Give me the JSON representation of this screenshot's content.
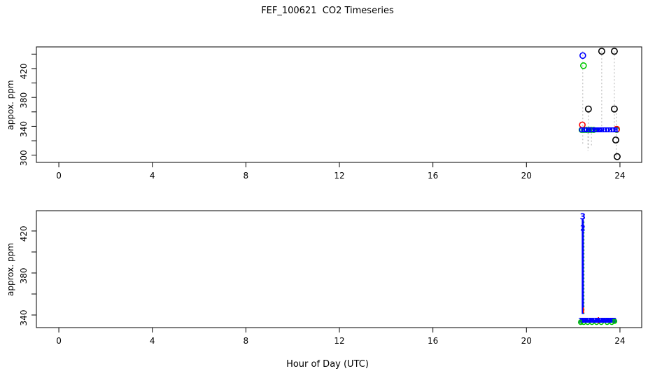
{
  "title": "FEF_100621  CO2 Timeseries",
  "xlabel": "Hour of Day (UTC)",
  "panels": {
    "top": {
      "ylabel": "appox. ppm"
    },
    "bottom": {
      "ylabel": "approx. ppm"
    }
  },
  "colors": {
    "black": "#000000",
    "blue": "#0000ff",
    "green": "#00c800",
    "red": "#ff0000",
    "gray_dotted": "#b3b3b3",
    "axis": "#000000",
    "background": "#ffffff"
  },
  "chart_data": [
    {
      "type": "scatter",
      "panel": "top",
      "ylabel": "appox. ppm",
      "xlim": [
        -0.96,
        24.93
      ],
      "ylim": [
        290,
        450
      ],
      "xticks": [
        0,
        4,
        8,
        12,
        16,
        20,
        24
      ],
      "yticks": [
        300,
        340,
        380,
        420
      ],
      "yticks_minor": [
        320,
        360,
        400,
        440
      ],
      "grid": false,
      "legend": null,
      "connectors": {
        "style": "dotted",
        "color": "#b3b3b3",
        "width": 1,
        "segs": [
          [
            22.41,
            444,
            22.41,
            316
          ],
          [
            22.63,
            336,
            22.63,
            306
          ],
          [
            22.65,
            360,
            22.65,
            308
          ],
          [
            22.78,
            335,
            22.78,
            312
          ],
          [
            23.22,
            444,
            23.22,
            336
          ],
          [
            23.76,
            444,
            23.76,
            336
          ],
          [
            23.84,
            363,
            23.84,
            294
          ]
        ]
      },
      "series": [
        {
          "name": "band-underlay-green",
          "kind": "points",
          "marker": "circle-open",
          "color": "#00c800",
          "size": 3.5,
          "points": [
            [
              22.36,
              335
            ],
            [
              22.46,
              335
            ],
            [
              22.56,
              335
            ],
            [
              22.67,
              335
            ],
            [
              22.77,
              335
            ],
            [
              22.88,
              335
            ],
            [
              23.86,
              335
            ]
          ]
        },
        {
          "name": "red-flag-points",
          "kind": "points",
          "marker": "circle-open",
          "color": "#ff0000",
          "size": 4,
          "points": [
            [
              22.39,
              342
            ],
            [
              23.86,
              336
            ]
          ]
        },
        {
          "name": "calibration-band-digits",
          "kind": "points",
          "marker": "digit",
          "color": "#0000ff",
          "size": 9.5,
          "points": [
            [
              22.34,
              335
            ],
            [
              22.385,
              335
            ],
            [
              22.43,
              335
            ],
            [
              22.475,
              335
            ],
            [
              22.52,
              335
            ],
            [
              22.565,
              335
            ],
            [
              22.61,
              335
            ],
            [
              22.655,
              335
            ],
            [
              22.7,
              335
            ],
            [
              22.745,
              335
            ],
            [
              22.79,
              335
            ],
            [
              22.835,
              335
            ],
            [
              22.88,
              335
            ],
            [
              22.925,
              335
            ],
            [
              22.97,
              335
            ],
            [
              23.015,
              335
            ],
            [
              23.06,
              335
            ],
            [
              23.105,
              335
            ],
            [
              23.15,
              335
            ],
            [
              23.195,
              335
            ],
            [
              23.24,
              335
            ],
            [
              23.285,
              335
            ],
            [
              23.33,
              335
            ],
            [
              23.375,
              335
            ],
            [
              23.42,
              335
            ],
            [
              23.465,
              335
            ],
            [
              23.51,
              335
            ],
            [
              23.555,
              335
            ],
            [
              23.6,
              335
            ],
            [
              23.645,
              335
            ],
            [
              23.69,
              335
            ],
            [
              23.735,
              335
            ],
            [
              23.78,
              335
            ],
            [
              23.825,
              335
            ],
            [
              23.87,
              335
            ]
          ],
          "labels": [
            "0",
            "1",
            "3",
            "1",
            "0",
            "2",
            "1",
            "3",
            "1",
            "1",
            "0",
            "3",
            "1",
            "2",
            "0",
            "1",
            "1",
            "3",
            "0",
            "1",
            "2",
            "1",
            "0",
            "3",
            "1",
            "0",
            "1",
            "2",
            "3",
            "1",
            "0",
            "1",
            "1",
            "3",
            "1"
          ]
        },
        {
          "name": "blue-high-point",
          "kind": "points",
          "marker": "circle-open",
          "color": "#0000ff",
          "size": 4,
          "points": [
            [
              22.41,
              438
            ]
          ]
        },
        {
          "name": "green-high-point",
          "kind": "points",
          "marker": "circle-open",
          "color": "#00c800",
          "size": 4,
          "points": [
            [
              22.44,
              424
            ]
          ]
        },
        {
          "name": "black-flag-points",
          "kind": "points",
          "marker": "circle-open",
          "color": "#000000",
          "size": 4.2,
          "points": [
            [
              23.22,
              444
            ],
            [
              23.76,
              444
            ],
            [
              22.65,
              364
            ],
            [
              23.76,
              364
            ],
            [
              23.82,
              321
            ],
            [
              23.88,
              298
            ]
          ]
        }
      ]
    },
    {
      "type": "scatter",
      "panel": "bottom",
      "ylabel": "approx. ppm",
      "xlim": [
        -0.96,
        24.93
      ],
      "ylim": [
        328,
        439.3
      ],
      "xticks": [
        0,
        4,
        8,
        12,
        16,
        20,
        24
      ],
      "yticks": [
        340,
        380,
        420
      ],
      "yticks_minor": [
        360,
        400
      ],
      "grid": false,
      "legend": null,
      "connectors": {
        "style": "dotted",
        "color": "#00c800",
        "width": 1.4,
        "segs": [
          [
            22.46,
            429,
            22.46,
            341
          ]
        ]
      },
      "series": [
        {
          "name": "band-underlay-green",
          "kind": "points",
          "marker": "circle-open",
          "color": "#00c800",
          "size": 3,
          "points": [
            [
              22.32,
              333
            ],
            [
              22.45,
              333
            ],
            [
              22.62,
              333
            ],
            [
              22.8,
              333
            ],
            [
              23.0,
              333
            ],
            [
              23.2,
              333
            ],
            [
              23.45,
              333
            ],
            [
              23.65,
              333
            ],
            [
              23.77,
              334
            ]
          ]
        },
        {
          "name": "profile-vline-blue",
          "kind": "segments",
          "style": "solid",
          "color": "#0000ff",
          "width": 3,
          "segs": [
            [
              22.41,
              431,
              22.41,
              341
            ]
          ]
        },
        {
          "name": "red-marks",
          "kind": "segments",
          "style": "solid",
          "color": "#ff0000",
          "width": 1.6,
          "segs": [
            [
              22.44,
              347,
              22.44,
              342
            ],
            [
              23.08,
              338,
              23.08,
              332
            ]
          ]
        },
        {
          "name": "band-digits",
          "kind": "points",
          "marker": "digit",
          "color": "#0000ff",
          "size": 9.5,
          "points": [
            [
              22.31,
              335
            ],
            [
              22.36,
              335
            ],
            [
              22.41,
              335
            ],
            [
              22.46,
              335
            ],
            [
              22.51,
              335
            ],
            [
              22.56,
              335
            ],
            [
              22.61,
              335
            ],
            [
              22.66,
              335
            ],
            [
              22.71,
              335
            ],
            [
              22.76,
              335
            ],
            [
              22.81,
              335
            ],
            [
              22.86,
              335
            ],
            [
              22.91,
              335
            ],
            [
              22.96,
              335
            ],
            [
              23.01,
              335
            ],
            [
              23.06,
              335
            ],
            [
              23.11,
              335
            ],
            [
              23.16,
              335
            ],
            [
              23.21,
              335
            ],
            [
              23.26,
              335
            ],
            [
              23.31,
              335
            ],
            [
              23.36,
              335
            ],
            [
              23.41,
              335
            ],
            [
              23.46,
              335
            ],
            [
              23.51,
              335
            ],
            [
              23.56,
              335
            ],
            [
              23.61,
              335
            ],
            [
              23.66,
              335
            ],
            [
              23.71,
              335
            ],
            [
              23.76,
              335
            ]
          ],
          "labels": [
            "3",
            "6",
            "8",
            "8",
            "3",
            "8",
            "6",
            "8",
            "3",
            "8",
            "8",
            "6",
            "8",
            "3",
            "8",
            "8",
            "6",
            "8",
            "3",
            "8",
            "6",
            "8",
            "8",
            "3",
            "8",
            "6",
            "8",
            "8",
            "3",
            "8"
          ]
        },
        {
          "name": "green-band-digits",
          "kind": "points",
          "marker": "digit",
          "color": "#00c800",
          "size": 9,
          "points": [
            [
              22.3,
              333.5
            ],
            [
              23.75,
              334
            ]
          ],
          "labels": [
            "8",
            "8"
          ]
        },
        {
          "name": "profile-top-digit-3",
          "kind": "points",
          "marker": "digit",
          "color": "#0000ff",
          "size": 12,
          "points": [
            [
              22.41,
              434
            ]
          ],
          "labels": [
            "3"
          ]
        },
        {
          "name": "profile-top-digit-2",
          "kind": "points",
          "marker": "digit",
          "color": "#0000ff",
          "size": 11,
          "points": [
            [
              22.41,
              423
            ]
          ],
          "labels": [
            "2"
          ]
        }
      ]
    }
  ]
}
